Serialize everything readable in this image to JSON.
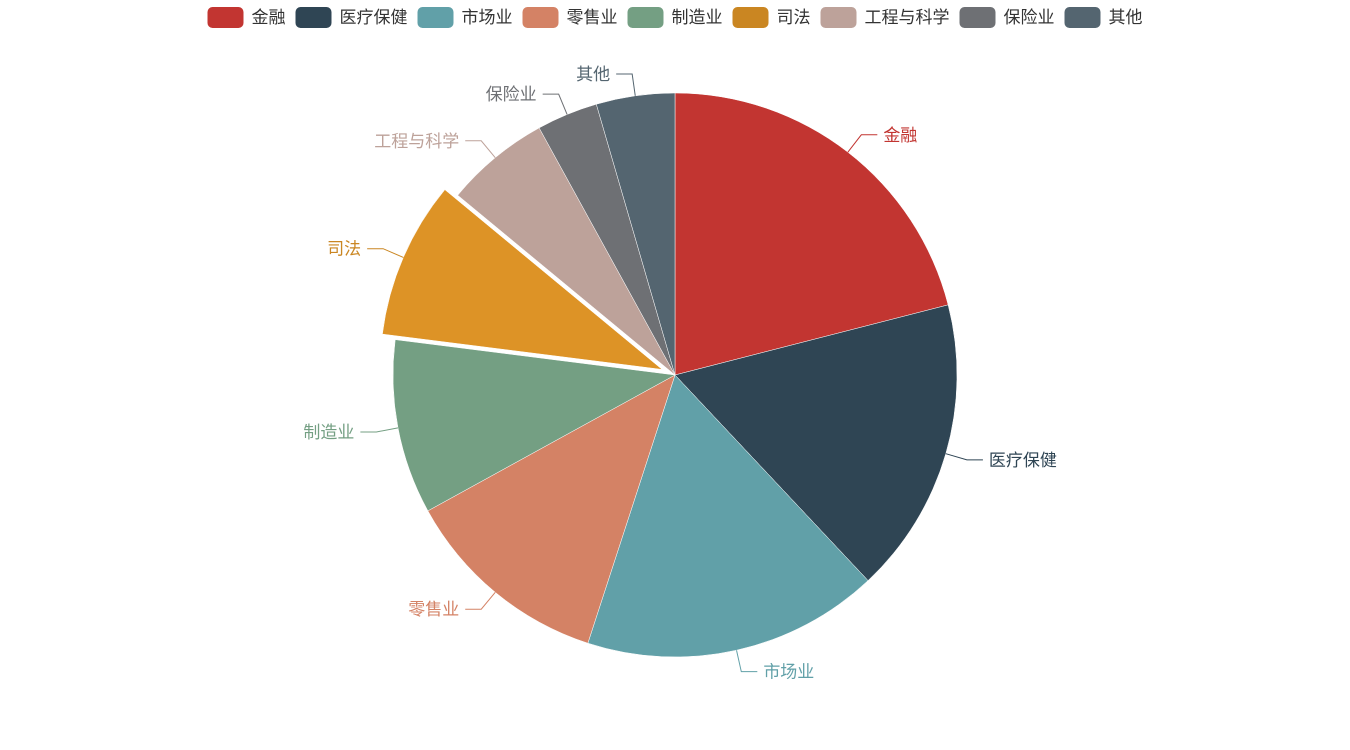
{
  "chart_data": {
    "type": "pie",
    "title": "",
    "legend_position": "top",
    "start_angle_deg": 90,
    "direction": "clockwise",
    "categories": [
      "金融",
      "医疗保健",
      "市场业",
      "零售业",
      "制造业",
      "司法",
      "工程与科学",
      "保险业",
      "其他"
    ],
    "values": [
      21,
      17,
      17,
      12,
      10,
      9,
      6,
      3.5,
      4.5
    ],
    "colors": [
      "#c23531",
      "#2f4554",
      "#61a0a8",
      "#d48265",
      "#749f83",
      "#ca8622",
      "#bda29a",
      "#6e7074",
      "#546570"
    ],
    "highlighted": "司法",
    "highlight_color": "#dd9326"
  }
}
